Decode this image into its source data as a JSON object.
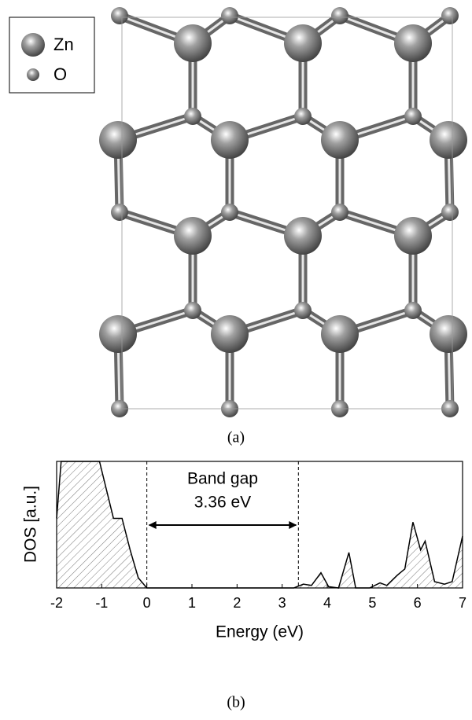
{
  "panel_a": {
    "legend": [
      "Zn",
      "O"
    ],
    "caption": "(a)"
  },
  "chart_data": {
    "type": "area",
    "x": [
      -2,
      -1.9,
      -1.05,
      -0.74,
      -0.55,
      -0.37,
      -0.19,
      0,
      3.26,
      3.47,
      3.65,
      3.86,
      4.03,
      4.25,
      4.48,
      4.63,
      4.94,
      5.17,
      5.32,
      5.55,
      5.72,
      5.9,
      6.07,
      6.17,
      6.38,
      6.6,
      6.77,
      7
    ],
    "values": [
      0.55,
      1,
      1,
      0.55,
      0.55,
      0.3,
      0.08,
      0,
      0,
      0.03,
      0.02,
      0.12,
      0.01,
      0,
      0.28,
      0,
      0,
      0.04,
      0.02,
      0.1,
      0.15,
      0.52,
      0.3,
      0.37,
      0.05,
      0.03,
      0.05,
      0.41
    ],
    "xlim": [
      -2,
      7
    ],
    "ylim": [
      0,
      1
    ],
    "xticks": [
      -2,
      -1,
      0,
      1,
      2,
      3,
      4,
      5,
      6,
      7
    ],
    "xlabel": "Energy (eV)",
    "ylabel": "DOS [a.u.]",
    "gap": {
      "label": "Band gap",
      "from": 0,
      "to": 3.36,
      "value_label": "3.36 eV"
    },
    "caption": "(b)"
  }
}
